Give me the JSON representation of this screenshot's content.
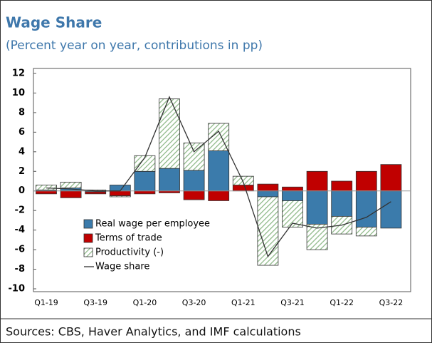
{
  "chart_data": {
    "type": "bar",
    "stacked": true,
    "title": "Wage Share",
    "subtitle": "(Percent year on year, contributions in pp)",
    "source": "Sources: CBS, Haver Analytics, and IMF calculations",
    "categories": [
      "Q1-19",
      null,
      "Q3-19",
      null,
      "Q1-20",
      null,
      "Q3-20",
      null,
      "Q1-21",
      null,
      "Q3-21",
      null,
      "Q1-22",
      null,
      "Q3-22"
    ],
    "series": [
      {
        "name": "Real wage per employee",
        "type": "bar",
        "color": "#3b7bab",
        "values": [
          0.1,
          0.3,
          -0.1,
          0.6,
          2.0,
          2.3,
          2.1,
          4.1,
          0,
          -0.6,
          -1.0,
          -3.4,
          -2.6,
          -3.7,
          -3.8
        ]
      },
      {
        "name": "Terms of trade",
        "type": "bar",
        "color": "#c00000",
        "values": [
          -0.3,
          -0.7,
          -0.2,
          -0.5,
          -0.3,
          -0.2,
          -0.9,
          -1.0,
          0.6,
          0.7,
          0.4,
          2.0,
          1.0,
          2.0,
          2.7
        ]
      },
      {
        "name": "Productivity (-)",
        "type": "bar",
        "color": "#8db887",
        "hatch": true,
        "values": [
          0.5,
          0.6,
          0.1,
          -0.1,
          1.6,
          7.1,
          2.8,
          2.8,
          0.9,
          -7.0,
          -2.7,
          -2.6,
          -1.8,
          -0.9,
          0
        ]
      },
      {
        "name": "Wage share",
        "type": "line",
        "color": "#333333",
        "values": [
          0.3,
          0.2,
          0,
          0,
          3.4,
          9.6,
          4.0,
          6.1,
          0.9,
          -6.7,
          -3.3,
          -3.8,
          -3.5,
          -2.7,
          -1.1
        ]
      }
    ],
    "ylim": [
      -10,
      12
    ],
    "yticks": [
      -10,
      -8,
      -6,
      -4,
      -2,
      0,
      2,
      4,
      6,
      8,
      10,
      12
    ],
    "grid": false
  }
}
